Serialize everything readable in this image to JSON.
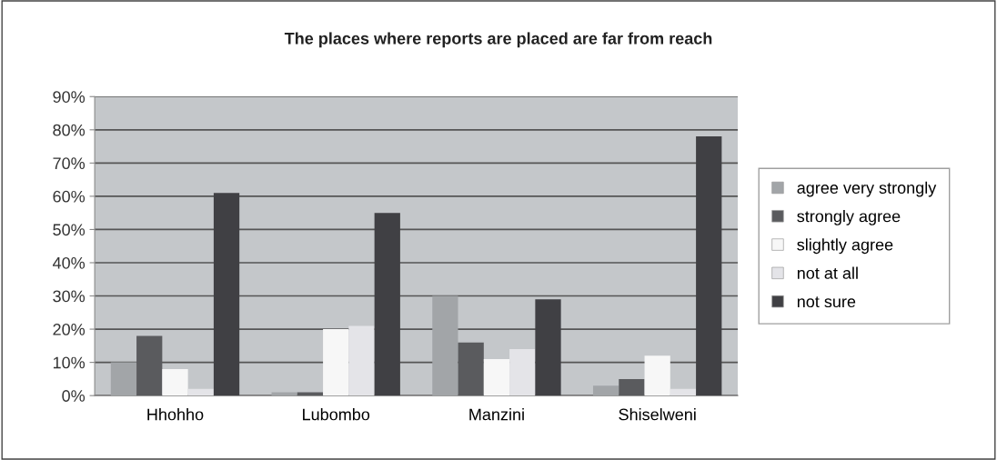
{
  "chart_data": {
    "type": "bar",
    "title": "The places where reports are placed are far from reach",
    "categories": [
      "Hhohho",
      "Lubombo",
      "Manzini",
      "Shiselweni"
    ],
    "series": [
      {
        "name": "agree very strongly",
        "color": "#a2a5a8",
        "values": [
          10,
          1,
          30,
          3
        ]
      },
      {
        "name": "strongly agree",
        "color": "#5a5b5e",
        "values": [
          18,
          1,
          16,
          5
        ]
      },
      {
        "name": "slightly agree",
        "color": "#f7f7f7",
        "values": [
          8,
          20,
          11,
          12
        ]
      },
      {
        "name": "not at all",
        "color": "#e4e4e8",
        "values": [
          2,
          21,
          14,
          2
        ]
      },
      {
        "name": "not sure",
        "color": "#404044",
        "values": [
          61,
          55,
          29,
          78
        ]
      }
    ],
    "ylim": [
      0,
      90
    ],
    "yticks": [
      {
        "value": 0,
        "label": "0%"
      },
      {
        "value": 10,
        "label": "10%"
      },
      {
        "value": 20,
        "label": "20%"
      },
      {
        "value": 30,
        "label": "30%"
      },
      {
        "value": 40,
        "label": "40%"
      },
      {
        "value": 50,
        "label": "50%"
      },
      {
        "value": 60,
        "label": "60%"
      },
      {
        "value": 70,
        "label": "70%"
      },
      {
        "value": 80,
        "label": "80%"
      },
      {
        "value": 90,
        "label": "90%"
      }
    ],
    "grid": "y",
    "legend": "right"
  }
}
